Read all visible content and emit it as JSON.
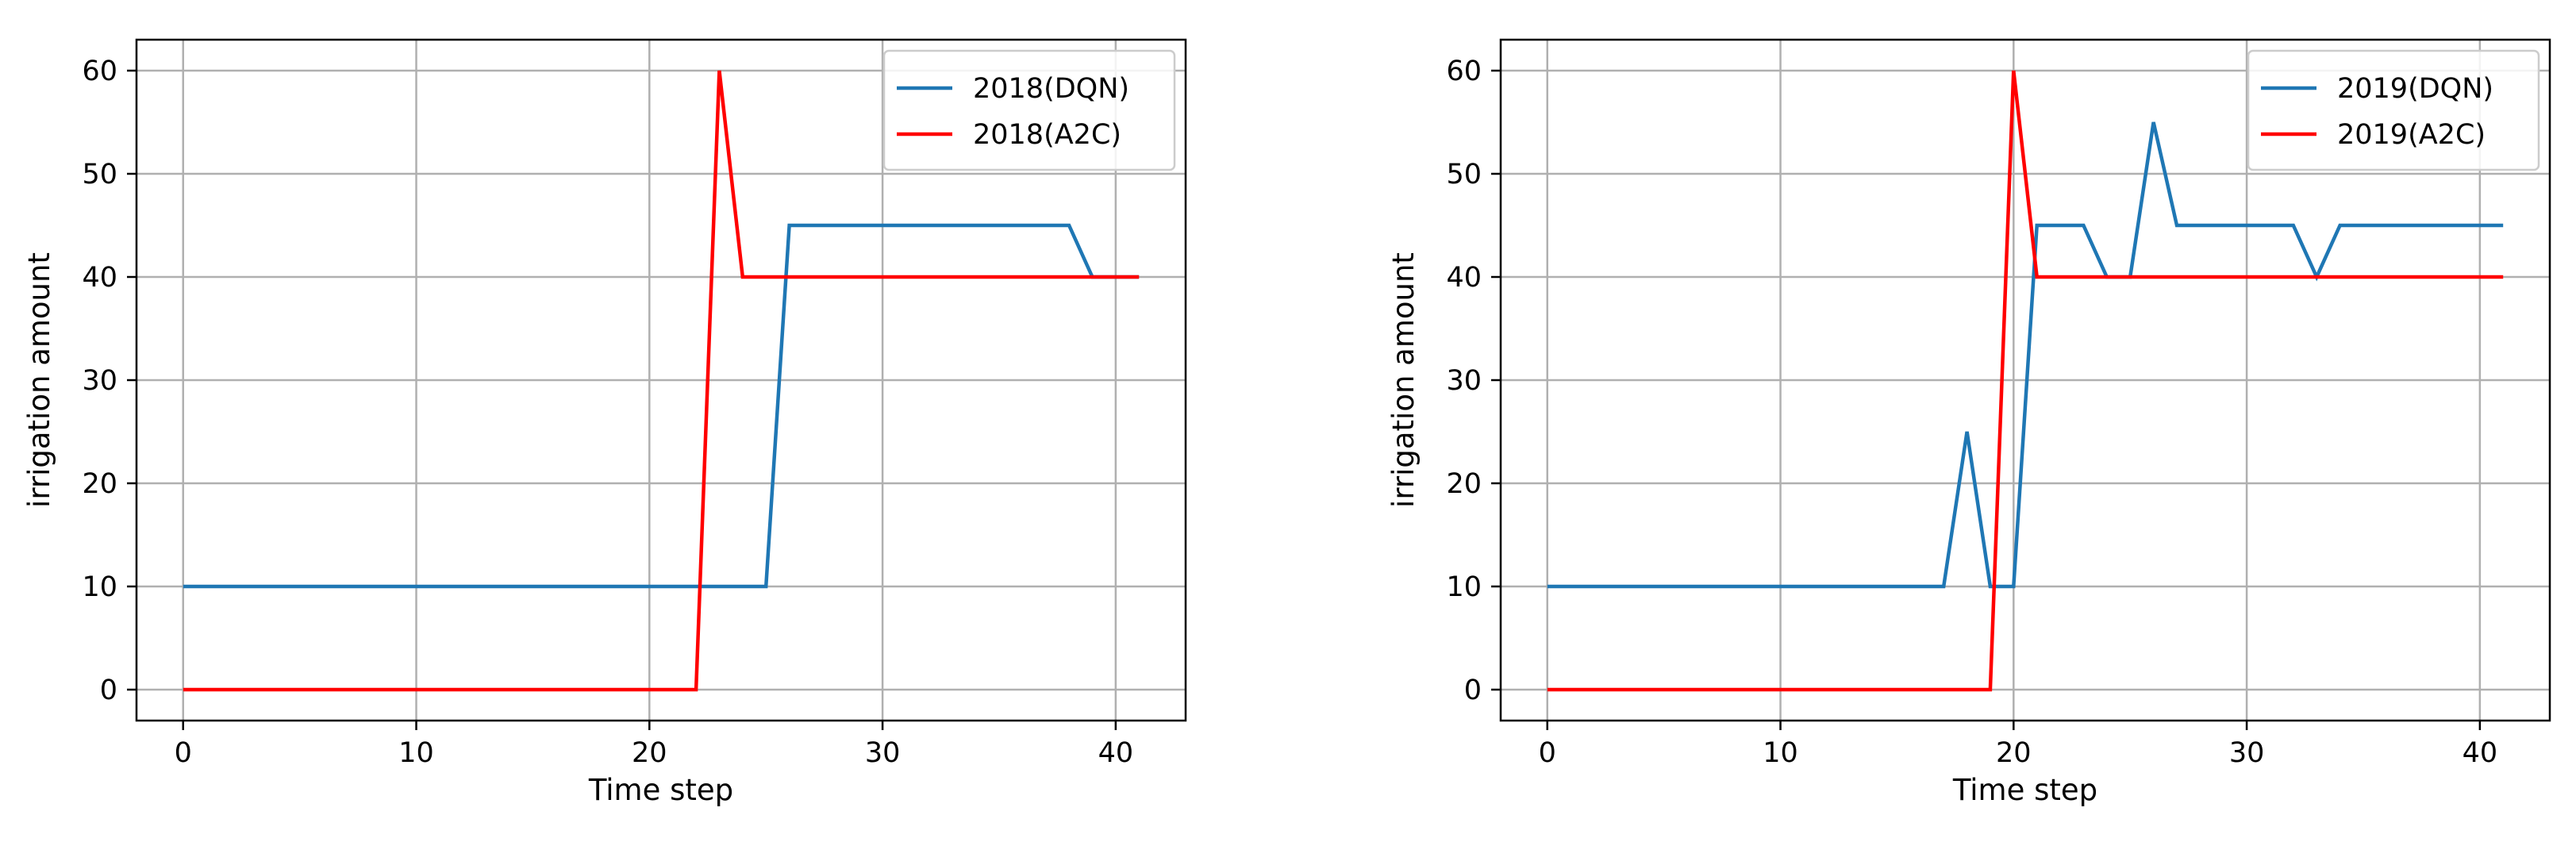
{
  "chart_data": [
    {
      "type": "line",
      "xlabel": "Time step",
      "ylabel": "irrigation amount",
      "xlim": [
        -2,
        43
      ],
      "ylim": [
        -3,
        63
      ],
      "xticks": [
        0,
        10,
        20,
        30,
        40
      ],
      "yticks": [
        0,
        10,
        20,
        30,
        40,
        50,
        60
      ],
      "grid": true,
      "legend_position": "top-right",
      "series": [
        {
          "name": "2018(DQN)",
          "color": "#1f77b4",
          "x": [
            0,
            1,
            2,
            3,
            4,
            5,
            6,
            7,
            8,
            9,
            10,
            11,
            12,
            13,
            14,
            15,
            16,
            17,
            18,
            19,
            20,
            21,
            22,
            23,
            24,
            25,
            26,
            27,
            28,
            29,
            30,
            31,
            32,
            33,
            34,
            35,
            36,
            37,
            38,
            39,
            40,
            41
          ],
          "values": [
            10,
            10,
            10,
            10,
            10,
            10,
            10,
            10,
            10,
            10,
            10,
            10,
            10,
            10,
            10,
            10,
            10,
            10,
            10,
            10,
            10,
            10,
            10,
            10,
            10,
            10,
            45,
            45,
            45,
            45,
            45,
            45,
            45,
            45,
            45,
            45,
            45,
            45,
            45,
            40,
            40,
            40
          ]
        },
        {
          "name": "2018(A2C)",
          "color": "#ff0000",
          "x": [
            0,
            1,
            2,
            3,
            4,
            5,
            6,
            7,
            8,
            9,
            10,
            11,
            12,
            13,
            14,
            15,
            16,
            17,
            18,
            19,
            20,
            21,
            22,
            23,
            24,
            25,
            26,
            27,
            28,
            29,
            30,
            31,
            32,
            33,
            34,
            35,
            36,
            37,
            38,
            39,
            40,
            41
          ],
          "values": [
            0,
            0,
            0,
            0,
            0,
            0,
            0,
            0,
            0,
            0,
            0,
            0,
            0,
            0,
            0,
            0,
            0,
            0,
            0,
            0,
            0,
            0,
            0,
            60,
            40,
            40,
            40,
            40,
            40,
            40,
            40,
            40,
            40,
            40,
            40,
            40,
            40,
            40,
            40,
            40,
            40,
            40
          ]
        }
      ]
    },
    {
      "type": "line",
      "xlabel": "Time step",
      "ylabel": "irrigation amount",
      "xlim": [
        -2,
        43
      ],
      "ylim": [
        -3,
        63
      ],
      "xticks": [
        0,
        10,
        20,
        30,
        40
      ],
      "yticks": [
        0,
        10,
        20,
        30,
        40,
        50,
        60
      ],
      "grid": true,
      "legend_position": "top-right",
      "series": [
        {
          "name": "2019(DQN)",
          "color": "#1f77b4",
          "x": [
            0,
            1,
            2,
            3,
            4,
            5,
            6,
            7,
            8,
            9,
            10,
            11,
            12,
            13,
            14,
            15,
            16,
            17,
            18,
            19,
            20,
            21,
            22,
            23,
            24,
            25,
            26,
            27,
            28,
            29,
            30,
            31,
            32,
            33,
            34,
            35,
            36,
            37,
            38,
            39,
            40,
            41
          ],
          "values": [
            10,
            10,
            10,
            10,
            10,
            10,
            10,
            10,
            10,
            10,
            10,
            10,
            10,
            10,
            10,
            10,
            10,
            10,
            25,
            10,
            10,
            45,
            45,
            45,
            40,
            40,
            55,
            45,
            45,
            45,
            45,
            45,
            45,
            40,
            45,
            45,
            45,
            45,
            45,
            45,
            45,
            45
          ]
        },
        {
          "name": "2019(A2C)",
          "color": "#ff0000",
          "x": [
            0,
            1,
            2,
            3,
            4,
            5,
            6,
            7,
            8,
            9,
            10,
            11,
            12,
            13,
            14,
            15,
            16,
            17,
            18,
            19,
            20,
            21,
            22,
            23,
            24,
            25,
            26,
            27,
            28,
            29,
            30,
            31,
            32,
            33,
            34,
            35,
            36,
            37,
            38,
            39,
            40,
            41
          ],
          "values": [
            0,
            0,
            0,
            0,
            0,
            0,
            0,
            0,
            0,
            0,
            0,
            0,
            0,
            0,
            0,
            0,
            0,
            0,
            0,
            0,
            60,
            40,
            40,
            40,
            40,
            40,
            40,
            40,
            40,
            40,
            40,
            40,
            40,
            40,
            40,
            40,
            40,
            40,
            40,
            40,
            40,
            40
          ]
        }
      ]
    }
  ]
}
